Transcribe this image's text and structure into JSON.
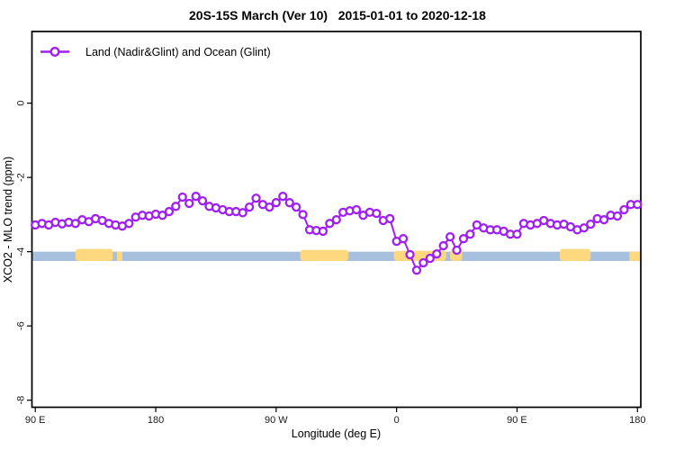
{
  "chart_data": {
    "type": "line",
    "title": "20S-15S March (Ver 10)   2015-01-01 to 2020-12-18",
    "xlabel": "Longitude (deg E)",
    "ylabel": "XCO2 - MLO trend (ppm)",
    "xlim": [
      87.5,
      542.5
    ],
    "ylim": [
      -8.19,
      1.93
    ],
    "grid": false,
    "legend_position": "top-left",
    "x_ticks": [
      {
        "pos": 90,
        "label": "90 E"
      },
      {
        "pos": 180,
        "label": "180"
      },
      {
        "pos": 270,
        "label": "90 W"
      },
      {
        "pos": 360,
        "label": "0"
      },
      {
        "pos": 450,
        "label": "90 E"
      },
      {
        "pos": 540,
        "label": "180"
      }
    ],
    "y_ticks": [
      {
        "pos": 0,
        "label": "0"
      },
      {
        "pos": -2,
        "label": "-2"
      },
      {
        "pos": -4,
        "label": "-4"
      },
      {
        "pos": -6,
        "label": "-6"
      },
      {
        "pos": -8,
        "label": "-8"
      }
    ],
    "series": [
      {
        "name": "Land (Nadir&Glint) and Ocean (Glint)",
        "color": "#a020f0",
        "marker": "open-circle",
        "x": [
          90,
          95,
          100,
          105,
          110,
          115,
          120,
          125,
          130,
          135,
          140,
          145,
          150,
          155,
          160,
          165,
          170,
          175,
          180,
          185,
          190,
          195,
          200,
          205,
          210,
          215,
          220,
          225,
          230,
          235,
          240,
          245,
          250,
          255,
          260,
          265,
          270,
          275,
          280,
          285,
          290,
          295,
          300,
          305,
          310,
          315,
          320,
          325,
          330,
          335,
          340,
          345,
          350,
          355,
          360,
          365,
          370,
          375,
          380,
          385,
          390,
          395,
          400,
          405,
          410,
          415,
          420,
          425,
          430,
          435,
          440,
          445,
          450,
          455,
          460,
          465,
          470,
          475,
          480,
          485,
          490,
          495,
          500,
          505,
          510,
          515,
          520,
          525,
          530,
          535,
          540
        ],
        "y": [
          -3.28,
          -3.24,
          -3.28,
          -3.21,
          -3.25,
          -3.21,
          -3.24,
          -3.14,
          -3.19,
          -3.11,
          -3.16,
          -3.24,
          -3.28,
          -3.31,
          -3.24,
          -3.07,
          -3.02,
          -3.04,
          -2.99,
          -3.02,
          -2.92,
          -2.78,
          -2.53,
          -2.7,
          -2.51,
          -2.63,
          -2.78,
          -2.82,
          -2.87,
          -2.92,
          -2.92,
          -2.95,
          -2.8,
          -2.56,
          -2.73,
          -2.8,
          -2.68,
          -2.51,
          -2.68,
          -2.8,
          -3.0,
          -3.41,
          -3.43,
          -3.45,
          -3.24,
          -3.14,
          -2.94,
          -2.9,
          -2.87,
          -3.02,
          -2.94,
          -2.97,
          -3.16,
          -3.11,
          -3.72,
          -3.65,
          -4.08,
          -4.5,
          -4.3,
          -4.18,
          -4.06,
          -3.84,
          -3.6,
          -3.96,
          -3.65,
          -3.53,
          -3.28,
          -3.36,
          -3.41,
          -3.41,
          -3.45,
          -3.53,
          -3.53,
          -3.24,
          -3.28,
          -3.24,
          -3.16,
          -3.24,
          -3.28,
          -3.26,
          -3.33,
          -3.41,
          -3.36,
          -3.26,
          -3.11,
          -3.14,
          -3.02,
          -3.04,
          -2.87,
          -2.73,
          -2.73
        ]
      }
    ],
    "band": {
      "color": "#a6c0de",
      "x_start": 87.5,
      "x_end": 542.5,
      "y_top": -4.0,
      "y_bottom": -4.25
    },
    "yellow_patches": {
      "color": "#fed87f",
      "segments": [
        {
          "x_start": 120,
          "x_end": 148,
          "rise": 3
        },
        {
          "x_start": 151,
          "x_end": 155,
          "rise": 0
        },
        {
          "x_start": 288,
          "x_end": 324,
          "rise": 2
        },
        {
          "x_start": 358,
          "x_end": 397,
          "rise": 1
        },
        {
          "x_start": 400,
          "x_end": 409,
          "rise": 2
        },
        {
          "x_start": 482,
          "x_end": 505,
          "rise": 3
        },
        {
          "x_start": 534,
          "x_end": 542,
          "rise": 0
        }
      ]
    }
  }
}
